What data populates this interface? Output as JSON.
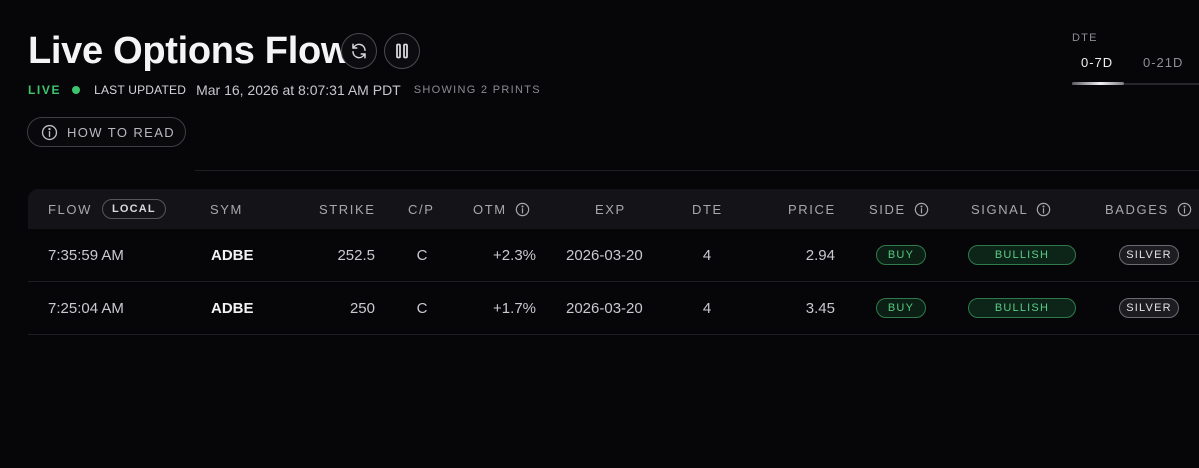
{
  "header": {
    "title": "Live Options Flow",
    "live_label": "LIVE",
    "last_updated_label": "LAST UPDATED",
    "last_updated_value": "Mar 16, 2026 at 8:07:31 AM PDT",
    "showing_text": "SHOWING 2 PRINTS",
    "how_to_read_label": "HOW TO READ"
  },
  "dte_filter": {
    "label": "DTE",
    "tabs": [
      "0-7D",
      "0-21D"
    ],
    "selected": "0-7D"
  },
  "table": {
    "columns": {
      "flow": "FLOW",
      "local_badge": "LOCAL",
      "sym": "SYM",
      "strike": "STRIKE",
      "cp": "C/P",
      "otm": "OTM",
      "exp": "EXP",
      "dte": "DTE",
      "price": "PRICE",
      "side": "SIDE",
      "signal": "SIGNAL",
      "badges": "BADGES"
    },
    "rows": [
      {
        "time": "7:35:59 AM",
        "sym": "ADBE",
        "strike": "252.5",
        "cp": "C",
        "otm": "+2.3%",
        "exp": "2026-03-20",
        "dte": "4",
        "price": "2.94",
        "side": "BUY",
        "signal": "BULLISH",
        "badge": "SILVER"
      },
      {
        "time": "7:25:04 AM",
        "sym": "ADBE",
        "strike": "250",
        "cp": "C",
        "otm": "+1.7%",
        "exp": "2026-03-20",
        "dte": "4",
        "price": "3.45",
        "side": "BUY",
        "signal": "BULLISH",
        "badge": "SILVER"
      }
    ]
  },
  "icons": {
    "refresh": "refresh-icon",
    "pause": "pause-icon",
    "info": "info-icon"
  },
  "colors": {
    "background": "#060608",
    "live_green": "#3ec46d",
    "bullish_green": "#5bcb86",
    "silver": "#e3e3e7"
  }
}
